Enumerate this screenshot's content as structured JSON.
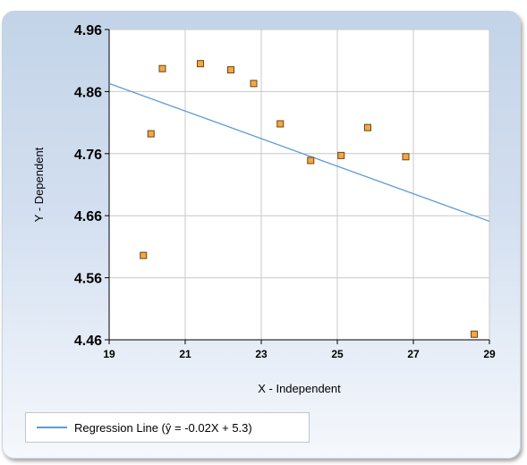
{
  "chart_data": {
    "type": "scatter",
    "xlabel": "X - Independent",
    "ylabel": "Y - Dependent",
    "xlim": [
      19,
      29
    ],
    "ylim": [
      4.46,
      4.96
    ],
    "x_ticks": [
      "19",
      "21",
      "23",
      "25",
      "27",
      "29"
    ],
    "y_ticks": [
      "4.46",
      "4.56",
      "4.66",
      "4.76",
      "4.86",
      "4.96"
    ],
    "x_tick_values": [
      19,
      21,
      23,
      25,
      27,
      29
    ],
    "y_tick_values": [
      4.46,
      4.56,
      4.66,
      4.76,
      4.86,
      4.96
    ],
    "grid": true,
    "points": [
      {
        "x": 19.9,
        "y": 4.596
      },
      {
        "x": 20.1,
        "y": 4.792
      },
      {
        "x": 20.4,
        "y": 4.897
      },
      {
        "x": 21.4,
        "y": 4.905
      },
      {
        "x": 22.2,
        "y": 4.895
      },
      {
        "x": 22.8,
        "y": 4.873
      },
      {
        "x": 23.5,
        "y": 4.808
      },
      {
        "x": 24.3,
        "y": 4.749
      },
      {
        "x": 25.1,
        "y": 4.757
      },
      {
        "x": 25.8,
        "y": 4.802
      },
      {
        "x": 26.8,
        "y": 4.755
      },
      {
        "x": 28.6,
        "y": 4.469
      }
    ],
    "regression_line": {
      "label": "Regression Line (ŷ = -0.02X + 5.3)",
      "slope": -0.02,
      "intercept": 5.3,
      "plot_start": {
        "x": 19,
        "y": 4.873
      },
      "plot_end": {
        "x": 29,
        "y": 4.651
      }
    },
    "legend_position": "bottom-left",
    "colors": {
      "marker_fill": "#f5a742",
      "marker_stroke": "#6b4410",
      "regression_line": "#5b9bd5",
      "grid": "#c8c8c8",
      "plot_background": "#ffffff"
    }
  }
}
